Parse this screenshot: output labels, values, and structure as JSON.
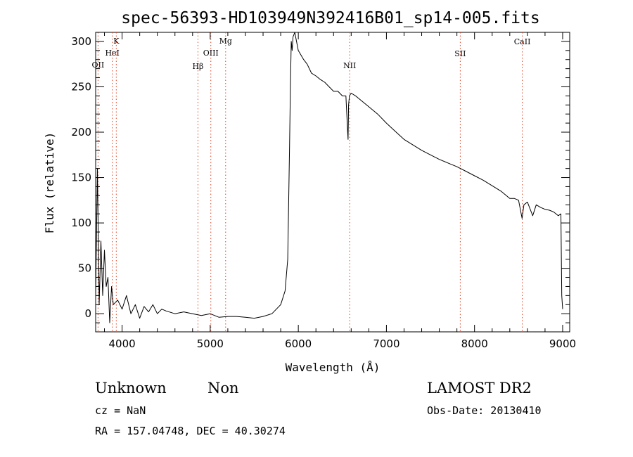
{
  "chart_data": {
    "type": "line",
    "title": "spec-56393-HD103949N392416B01_sp14-005.fits",
    "xlabel": "Wavelength (Å)",
    "ylabel": "Flux (relative)",
    "xlim": [
      3700,
      9080
    ],
    "ylim": [
      -20,
      310
    ],
    "xticks": [
      "4000",
      "5000",
      "6000",
      "7000",
      "8000",
      "9000"
    ],
    "yticks": [
      "0",
      "50",
      "100",
      "150",
      "200",
      "250",
      "300"
    ],
    "grid": false,
    "series": [
      {
        "x": [
          3700,
          3720,
          3740,
          3760,
          3780,
          3800,
          3820,
          3840,
          3860,
          3880,
          3900,
          3950,
          4000,
          4050,
          4100,
          4150,
          4200,
          4250,
          4300,
          4350,
          4400,
          4450,
          4500,
          4600,
          4700,
          4800,
          4900,
          5000,
          5100,
          5200,
          5300,
          5400,
          5500,
          5600,
          5700,
          5800,
          5850,
          5880,
          5900,
          5910,
          5920,
          5930,
          5940,
          5960,
          5980,
          6000,
          6030,
          6060,
          6100,
          6150,
          6200,
          6250,
          6300,
          6350,
          6400,
          6450,
          6500,
          6540,
          6560,
          6565,
          6570,
          6580,
          6600,
          6650,
          6700,
          6800,
          6900,
          7000,
          7100,
          7200,
          7300,
          7400,
          7500,
          7600,
          7700,
          7800,
          7900,
          8000,
          8100,
          8200,
          8300,
          8400,
          8450,
          8500,
          8540,
          8560,
          8600,
          8660,
          8700,
          8750,
          8800,
          8850,
          8900,
          8950,
          8980,
          8990,
          9000
        ],
        "y": [
          20,
          160,
          10,
          80,
          20,
          70,
          30,
          40,
          -10,
          30,
          10,
          15,
          5,
          20,
          0,
          10,
          -5,
          8,
          2,
          10,
          0,
          5,
          3,
          0,
          2,
          0,
          -2,
          0,
          -4,
          -3,
          -3,
          -4,
          -5,
          -3,
          0,
          10,
          25,
          60,
          180,
          250,
          300,
          290,
          305,
          310,
          300,
          290,
          285,
          280,
          275,
          265,
          262,
          258,
          255,
          250,
          245,
          245,
          240,
          240,
          200,
          192,
          230,
          240,
          243,
          240,
          236,
          228,
          220,
          210,
          201,
          192,
          186,
          180,
          175,
          170,
          166,
          162,
          157,
          152,
          147,
          141,
          135,
          127,
          127,
          125,
          105,
          120,
          123,
          108,
          120,
          117,
          115,
          114,
          112,
          108,
          110,
          20,
          5
        ]
      }
    ],
    "line_markers": [
      {
        "label": "OII",
        "x": 3727
      },
      {
        "label": "K",
        "x": 3934
      },
      {
        "label": "HeI",
        "x": 3889
      },
      {
        "label": "Hβ",
        "x": 4861
      },
      {
        "label": "OIII",
        "x": 5007
      },
      {
        "label": "Mg",
        "x": 5175
      },
      {
        "label": "NII",
        "x": 6583
      },
      {
        "label": "SII",
        "x": 7838
      },
      {
        "label": "CaII",
        "x": 8542
      }
    ],
    "marker_color": "#e0401f",
    "line_color": "#000000"
  },
  "info": {
    "object_class": "Unknown",
    "object_subclass": "Non",
    "survey": "LAMOST DR2",
    "cz": "cz = NaN",
    "obs_date": "Obs-Date: 20130410",
    "coords": "RA = 157.04748, DEC =  40.30274"
  }
}
